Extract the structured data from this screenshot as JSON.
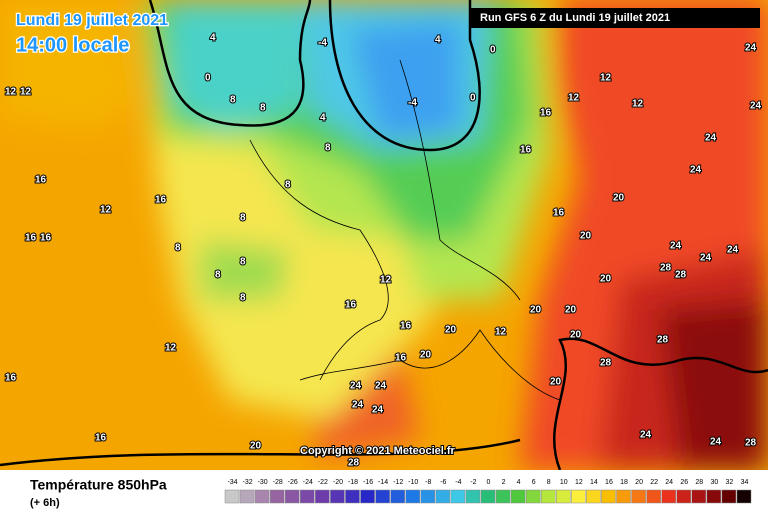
{
  "header": {
    "date": "Lundi 19 juillet 2021",
    "time": "14:00 locale",
    "run": "Run GFS 6 Z du Lundi 19 juillet 2021"
  },
  "copyright": "Copyright © 2021 Meteociel.fr",
  "footer": {
    "title": "Température 850hPa",
    "lead": "(+ 6h)"
  },
  "scale": [
    -34,
    -32,
    -30,
    -28,
    -26,
    -24,
    -22,
    -20,
    -18,
    -16,
    -14,
    -12,
    -10,
    -8,
    -6,
    -4,
    -2,
    0,
    2,
    4,
    6,
    8,
    10,
    12,
    14,
    16,
    18,
    20,
    22,
    24,
    26,
    28,
    30,
    32,
    34
  ],
  "map_labels": [
    "12",
    "12",
    "12",
    "12",
    "12",
    "12",
    "12",
    "12",
    "12",
    "16",
    "16",
    "16",
    "16",
    "16",
    "16",
    "16",
    "16",
    "16",
    "16",
    "16",
    "16",
    "8",
    "8",
    "8",
    "8",
    "8",
    "8",
    "8",
    "8",
    "8",
    "4",
    "4",
    "4",
    "-4",
    "-4",
    "0",
    "0",
    "0",
    "20",
    "20",
    "20",
    "20",
    "20",
    "20",
    "20",
    "20",
    "20",
    "20",
    "24",
    "24",
    "24",
    "24",
    "24",
    "24",
    "24",
    "24",
    "24",
    "24",
    "24",
    "24",
    "24",
    "28",
    "28",
    "28",
    "28",
    "28",
    "28"
  ]
}
